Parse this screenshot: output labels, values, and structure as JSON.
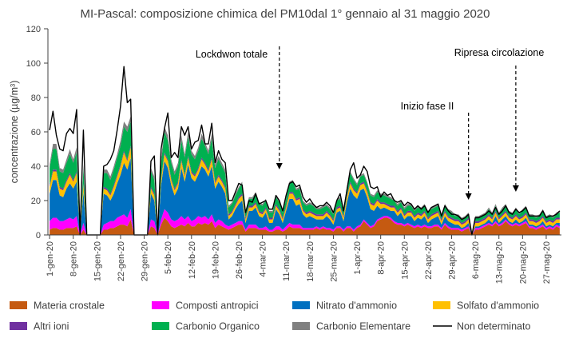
{
  "chart_data": {
    "type": "area",
    "title": "MI-Pascal: composizione chimica del PM10dal 1° gennaio al 31 maggio 2020",
    "ylabel": "concentrazione (µg/m³)",
    "xlabel": "",
    "ylim": [
      0,
      120
    ],
    "yticks": [
      0,
      20,
      40,
      60,
      80,
      100,
      120
    ],
    "date_range": [
      "2020-01-01",
      "2020-05-31"
    ],
    "x_tick_labels": [
      "1-gen-20",
      "8-gen-20",
      "15-gen-20",
      "22-gen-20",
      "29-gen-20",
      "5-feb-20",
      "12-feb-20",
      "19-feb-20",
      "26-feb-20",
      "4-mar-20",
      "11-mar-20",
      "18-mar-20",
      "25-mar-20",
      "1-apr-20",
      "8-apr-20",
      "15-apr-20",
      "22-apr-20",
      "29-apr-20",
      "6-mag-20",
      "13-mag-20",
      "20-mag-20",
      "27-mag-20"
    ],
    "grid": false,
    "legend_position": "bottom",
    "series": [
      {
        "name": "Materia crostale",
        "color": "#c55a11",
        "values": [
          3,
          4,
          4,
          3,
          3,
          4,
          4,
          4,
          5,
          0,
          3,
          0,
          0,
          0,
          0,
          0,
          3,
          3,
          4,
          4,
          5,
          6,
          6,
          5,
          9,
          0,
          0,
          0,
          0,
          0,
          5,
          4,
          0,
          6,
          10,
          8,
          5,
          4,
          5,
          6,
          5,
          7,
          5,
          5,
          7,
          6,
          7,
          6,
          8,
          4,
          6,
          5,
          4,
          3,
          4,
          5,
          6,
          6,
          2,
          4,
          4,
          4,
          3,
          3,
          3,
          2,
          2,
          3,
          3,
          2,
          3,
          5,
          4,
          4,
          4,
          3,
          3,
          3,
          3,
          4,
          3,
          4,
          3,
          3,
          2,
          4,
          4,
          2,
          4,
          4,
          2,
          4,
          5,
          8,
          6,
          4,
          5,
          8,
          9,
          10,
          10,
          9,
          7,
          6,
          6,
          5,
          6,
          5,
          4,
          5,
          4,
          5,
          4,
          4,
          5,
          5,
          3,
          6,
          4,
          3,
          3,
          3,
          2,
          3,
          4,
          0,
          3,
          3,
          4,
          5,
          6,
          5,
          7,
          5,
          6,
          8,
          6,
          5,
          6,
          5,
          6,
          7,
          4,
          4,
          3,
          4,
          5,
          3,
          4,
          3,
          5,
          4
        ]
      },
      {
        "name": "Composti antropici",
        "color": "#ff00ff",
        "values": [
          5,
          6,
          6,
          5,
          5,
          5,
          6,
          5,
          6,
          0,
          4,
          0,
          0,
          0,
          0,
          0,
          3,
          4,
          4,
          4,
          5,
          5,
          6,
          5,
          6,
          0,
          0,
          0,
          0,
          0,
          4,
          4,
          0,
          3,
          5,
          5,
          4,
          4,
          4,
          5,
          4,
          4,
          3,
          4,
          4,
          4,
          4,
          3,
          4,
          3,
          3,
          3,
          2,
          2,
          2,
          2,
          2,
          2,
          1,
          2,
          2,
          2,
          1,
          1,
          2,
          1,
          1,
          2,
          2,
          1,
          2,
          2,
          2,
          2,
          2,
          1,
          1,
          1,
          1,
          1,
          1,
          1,
          1,
          1,
          1,
          1,
          1,
          1,
          1,
          1,
          1,
          1,
          1,
          1,
          1,
          1,
          1,
          1,
          1,
          1,
          1,
          1,
          1,
          1,
          1,
          1,
          1,
          1,
          1,
          1,
          1,
          1,
          1,
          1,
          1,
          1,
          1,
          1,
          1,
          1,
          1,
          1,
          1,
          1,
          1,
          0,
          1,
          1,
          1,
          1,
          1,
          1,
          1,
          1,
          1,
          1,
          1,
          1,
          1,
          1,
          1,
          1,
          1,
          1,
          1,
          1,
          1,
          1,
          1,
          1,
          1,
          1
        ]
      },
      {
        "name": "Nitrato d'ammonio",
        "color": "#0070c0",
        "values": [
          16,
          22,
          22,
          15,
          14,
          18,
          20,
          18,
          20,
          0,
          18,
          0,
          0,
          0,
          0,
          0,
          18,
          16,
          12,
          16,
          20,
          24,
          30,
          28,
          30,
          0,
          0,
          0,
          0,
          0,
          15,
          12,
          0,
          20,
          28,
          26,
          20,
          15,
          18,
          28,
          22,
          30,
          25,
          22,
          24,
          30,
          27,
          25,
          28,
          20,
          22,
          20,
          18,
          4,
          5,
          8,
          10,
          12,
          4,
          8,
          8,
          10,
          7,
          6,
          8,
          4,
          4,
          10,
          7,
          4,
          9,
          14,
          15,
          11,
          12,
          8,
          6,
          7,
          6,
          4,
          5,
          4,
          7,
          5,
          3,
          8,
          9,
          5,
          14,
          22,
          20,
          16,
          20,
          18,
          15,
          10,
          8,
          8,
          5,
          5,
          4,
          4,
          6,
          4,
          6,
          3,
          4,
          5,
          3,
          4,
          4,
          5,
          2,
          4,
          4,
          5,
          2,
          4,
          3,
          3,
          2,
          2,
          1,
          1,
          2,
          0,
          1,
          1,
          1,
          1,
          2,
          1,
          3,
          1,
          2,
          2,
          1,
          1,
          2,
          1,
          1,
          2,
          1,
          1,
          1,
          1,
          2,
          1,
          1,
          1,
          1,
          2
        ]
      },
      {
        "name": "Solfato d'ammonio",
        "color": "#ffc000",
        "values": [
          4,
          5,
          5,
          4,
          4,
          4,
          5,
          4,
          5,
          0,
          4,
          0,
          0,
          0,
          0,
          0,
          3,
          3,
          3,
          4,
          4,
          5,
          6,
          5,
          6,
          0,
          0,
          0,
          0,
          0,
          3,
          3,
          0,
          3,
          4,
          4,
          3,
          3,
          3,
          4,
          3,
          4,
          3,
          3,
          3,
          4,
          3,
          3,
          4,
          3,
          3,
          3,
          3,
          2,
          2,
          2,
          3,
          3,
          2,
          2,
          2,
          2,
          2,
          2,
          2,
          2,
          2,
          2,
          2,
          2,
          2,
          3,
          3,
          3,
          3,
          2,
          2,
          2,
          2,
          2,
          2,
          2,
          2,
          2,
          2,
          2,
          2,
          2,
          3,
          3,
          3,
          3,
          3,
          3,
          3,
          3,
          3,
          3,
          3,
          2,
          2,
          2,
          2,
          2,
          2,
          2,
          2,
          2,
          2,
          2,
          2,
          2,
          2,
          2,
          2,
          2,
          2,
          2,
          2,
          2,
          2,
          2,
          2,
          2,
          2,
          0,
          2,
          2,
          2,
          2,
          2,
          2,
          2,
          2,
          2,
          2,
          2,
          2,
          2,
          2,
          2,
          2,
          2,
          2,
          2,
          2,
          2,
          2,
          2,
          2,
          2,
          2
        ]
      },
      {
        "name": "Altri ioni",
        "color": "#7030a0",
        "values": [
          1,
          1,
          1,
          1,
          1,
          1,
          1,
          1,
          1,
          0,
          1,
          0,
          0,
          0,
          0,
          0,
          1,
          1,
          1,
          1,
          1,
          1,
          1,
          1,
          1,
          0,
          0,
          0,
          0,
          0,
          1,
          1,
          0,
          1,
          1,
          1,
          1,
          1,
          1,
          1,
          1,
          1,
          1,
          1,
          1,
          1,
          1,
          1,
          1,
          1,
          1,
          1,
          1,
          1,
          1,
          1,
          1,
          1,
          1,
          1,
          1,
          1,
          1,
          1,
          1,
          1,
          1,
          1,
          1,
          1,
          1,
          1,
          1,
          1,
          1,
          1,
          1,
          1,
          1,
          1,
          1,
          1,
          1,
          1,
          1,
          1,
          1,
          1,
          1,
          1,
          1,
          1,
          1,
          1,
          1,
          1,
          1,
          1,
          1,
          1,
          1,
          1,
          1,
          1,
          1,
          1,
          1,
          1,
          1,
          1,
          1,
          1,
          1,
          1,
          1,
          1,
          1,
          1,
          1,
          1,
          1,
          1,
          1,
          1,
          1,
          0,
          1,
          1,
          1,
          1,
          1,
          1,
          1,
          1,
          1,
          1,
          1,
          1,
          1,
          1,
          1,
          1,
          1,
          1,
          1,
          1,
          1,
          1,
          1,
          1,
          1,
          1
        ]
      },
      {
        "name": "Carbonio Organico",
        "color": "#00b050",
        "values": [
          10,
          12,
          12,
          9,
          9,
          10,
          11,
          10,
          11,
          0,
          9,
          0,
          0,
          0,
          0,
          0,
          8,
          9,
          8,
          9,
          10,
          11,
          14,
          16,
          14,
          0,
          0,
          0,
          0,
          0,
          9,
          8,
          0,
          9,
          12,
          11,
          9,
          8,
          9,
          11,
          10,
          11,
          10,
          9,
          10,
          11,
          10,
          9,
          11,
          8,
          9,
          8,
          8,
          4,
          4,
          5,
          5,
          6,
          3,
          4,
          4,
          5,
          4,
          4,
          4,
          3,
          3,
          4,
          4,
          3,
          4,
          5,
          6,
          5,
          5,
          4,
          4,
          4,
          4,
          3,
          3,
          4,
          3,
          3,
          3,
          4,
          4,
          3,
          4,
          5,
          5,
          4,
          4,
          4,
          4,
          4,
          4,
          4,
          4,
          4,
          4,
          4,
          3,
          3,
          3,
          3,
          3,
          3,
          3,
          3,
          3,
          3,
          3,
          3,
          3,
          3,
          2,
          3,
          3,
          3,
          2,
          2,
          2,
          2,
          2,
          0,
          2,
          2,
          2,
          2,
          3,
          2,
          3,
          2,
          3,
          3,
          2,
          2,
          3,
          2,
          3,
          3,
          2,
          2,
          2,
          2,
          3,
          2,
          2,
          2,
          2,
          3
        ]
      },
      {
        "name": "Carbonio Elementare",
        "color": "#808080",
        "values": [
          2,
          3,
          3,
          2,
          2,
          2,
          3,
          2,
          3,
          0,
          2,
          0,
          0,
          0,
          0,
          0,
          2,
          2,
          2,
          2,
          2,
          3,
          3,
          3,
          3,
          0,
          0,
          0,
          0,
          0,
          2,
          2,
          0,
          2,
          3,
          3,
          2,
          2,
          2,
          3,
          2,
          3,
          2,
          2,
          2,
          3,
          2,
          2,
          3,
          2,
          2,
          2,
          2,
          1,
          1,
          1,
          1,
          1,
          1,
          1,
          1,
          1,
          1,
          1,
          1,
          1,
          1,
          1,
          1,
          1,
          1,
          1,
          1,
          1,
          1,
          1,
          1,
          1,
          1,
          1,
          1,
          1,
          1,
          1,
          1,
          1,
          1,
          1,
          1,
          1,
          1,
          1,
          1,
          1,
          1,
          1,
          1,
          1,
          1,
          1,
          1,
          1,
          1,
          1,
          1,
          1,
          1,
          1,
          1,
          1,
          1,
          1,
          1,
          1,
          1,
          1,
          1,
          1,
          1,
          1,
          1,
          1,
          1,
          1,
          1,
          0,
          1,
          1,
          1,
          1,
          1,
          1,
          1,
          1,
          1,
          1,
          1,
          1,
          1,
          1,
          1,
          1,
          1,
          1,
          1,
          1,
          1,
          1,
          1,
          1,
          1,
          1
        ]
      }
    ],
    "total": {
      "name": "Non determinato",
      "color": "#000000",
      "values": [
        61,
        72,
        58,
        50,
        49,
        59,
        62,
        59,
        73,
        0,
        61,
        0,
        0,
        0,
        0,
        0,
        40,
        41,
        44,
        49,
        61,
        75,
        98,
        77,
        79,
        0,
        0,
        0,
        0,
        0,
        43,
        46,
        0,
        50,
        62,
        71,
        45,
        48,
        45,
        63,
        58,
        63,
        50,
        54,
        55,
        64,
        53,
        53,
        65,
        42,
        49,
        44,
        42,
        20,
        20,
        25,
        30,
        29,
        13,
        20,
        19,
        24,
        18,
        19,
        20,
        15,
        15,
        23,
        20,
        14,
        23,
        30,
        31,
        28,
        29,
        22,
        19,
        21,
        18,
        16,
        17,
        17,
        19,
        17,
        13,
        20,
        24,
        14,
        26,
        38,
        42,
        33,
        35,
        40,
        37,
        28,
        27,
        28,
        22,
        25,
        23,
        24,
        20,
        19,
        20,
        17,
        19,
        18,
        15,
        17,
        15,
        17,
        13,
        16,
        17,
        18,
        11,
        17,
        14,
        12,
        12,
        11,
        9,
        10,
        12,
        0,
        10,
        10,
        11,
        12,
        14,
        12,
        16,
        12,
        14,
        17,
        13,
        12,
        15,
        13,
        14,
        16,
        11,
        11,
        11,
        11,
        14,
        10,
        11,
        11,
        12,
        14
      ]
    },
    "annotations": [
      {
        "text": "Lockdwon totale",
        "date": "2020-03-09"
      },
      {
        "text": "Inizio fase II",
        "date": "2020-05-04"
      },
      {
        "text": "Ripresa circolazione",
        "date": "2020-05-18"
      }
    ]
  }
}
